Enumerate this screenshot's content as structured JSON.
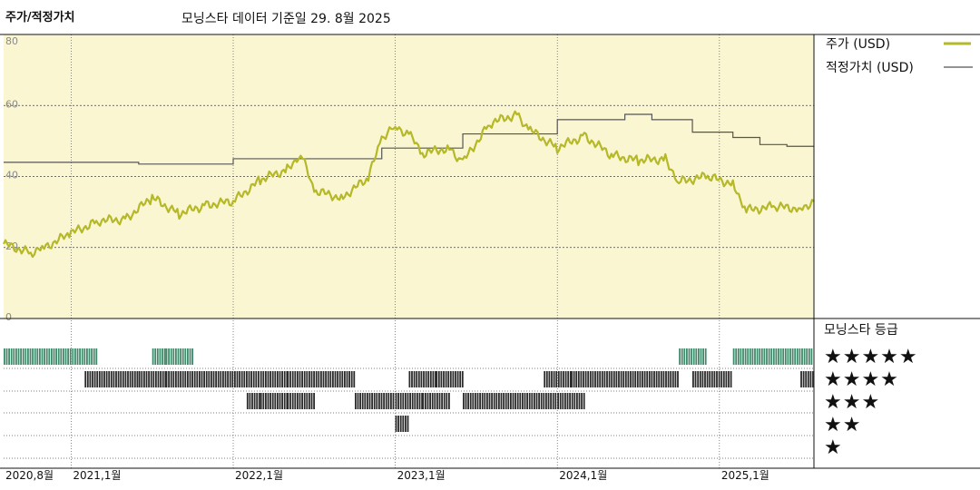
{
  "header": {
    "title": "주가/적정가치",
    "subtitle": "모닝스타 데이터 기준일 29. 8월 2025"
  },
  "legend": {
    "price_label": "주가 (USD)",
    "fair_value_label": "적정가치 (USD)"
  },
  "rating_panel": {
    "title": "모닝스타 등급",
    "levels": [
      "★★★★★",
      "★★★★",
      "★★★",
      "★★",
      "★"
    ]
  },
  "colors": {
    "price_line": "#b5b828",
    "fair_value_line": "#555555",
    "plot_bg": "#faf6d2",
    "five_star_bars": "#3f8a6a",
    "other_bars": "#2b2b2b"
  },
  "chart_data": {
    "type": "line",
    "x_axis": {
      "start": "2020-08",
      "end": "2025-08",
      "tick_labels": [
        "2020,8월",
        "2021,1월",
        "2022,1월",
        "2023,1월",
        "2024,1월",
        "2025,1월"
      ],
      "tick_dates": [
        "2020-08",
        "2021-01",
        "2022-01",
        "2023-01",
        "2024-01",
        "2025-01"
      ]
    },
    "y_axis": {
      "ticks": [
        0,
        20,
        40,
        60,
        80
      ],
      "ylim": [
        0,
        80
      ],
      "grid": true
    },
    "series": [
      {
        "name": "주가 (USD)",
        "points": [
          [
            "2020-08",
            21.0
          ],
          [
            "2020-10",
            18.5
          ],
          [
            "2020-11",
            20.0
          ],
          [
            "2021-01",
            24.0
          ],
          [
            "2021-03",
            27.5
          ],
          [
            "2021-05",
            28.0
          ],
          [
            "2021-07",
            34.0
          ],
          [
            "2021-09",
            29.5
          ],
          [
            "2021-11",
            32.0
          ],
          [
            "2022-01",
            33.0
          ],
          [
            "2022-03",
            39.0
          ],
          [
            "2022-05",
            42.0
          ],
          [
            "2022-06",
            46.5
          ],
          [
            "2022-07",
            36.0
          ],
          [
            "2022-09",
            34.0
          ],
          [
            "2022-11",
            39.5
          ],
          [
            "2022-12",
            51.0
          ],
          [
            "2023-01",
            54.0
          ],
          [
            "2023-02",
            52.0
          ],
          [
            "2023-03",
            46.5
          ],
          [
            "2023-05",
            48.0
          ],
          [
            "2023-06",
            44.0
          ],
          [
            "2023-08",
            55.0
          ],
          [
            "2023-10",
            57.5
          ],
          [
            "2023-11",
            53.0
          ],
          [
            "2024-01",
            48.0
          ],
          [
            "2024-03",
            51.5
          ],
          [
            "2024-05",
            46.0
          ],
          [
            "2024-07",
            44.5
          ],
          [
            "2024-09",
            45.0
          ],
          [
            "2024-10",
            38.5
          ],
          [
            "2024-12",
            40.0
          ],
          [
            "2025-02",
            38.0
          ],
          [
            "2025-03",
            30.5
          ],
          [
            "2025-05",
            31.5
          ],
          [
            "2025-07",
            31.0
          ],
          [
            "2025-08",
            33.0
          ]
        ]
      },
      {
        "name": "적정가치 (USD)",
        "points": [
          [
            "2020-08",
            44.0
          ],
          [
            "2021-01",
            44.0
          ],
          [
            "2021-05",
            44.0
          ],
          [
            "2021-06",
            43.5
          ],
          [
            "2021-12",
            43.5
          ],
          [
            "2022-01",
            45.0
          ],
          [
            "2022-11",
            45.0
          ],
          [
            "2022-12",
            48.0
          ],
          [
            "2023-05",
            48.0
          ],
          [
            "2023-06",
            52.0
          ],
          [
            "2023-12",
            52.0
          ],
          [
            "2024-01",
            56.0
          ],
          [
            "2024-05",
            56.0
          ],
          [
            "2024-06",
            57.5
          ],
          [
            "2024-08",
            56.0
          ],
          [
            "2024-10",
            56.0
          ],
          [
            "2024-11",
            52.5
          ],
          [
            "2025-01",
            52.5
          ],
          [
            "2025-02",
            51.0
          ],
          [
            "2025-04",
            49.0
          ],
          [
            "2025-06",
            48.5
          ],
          [
            "2025-08",
            48.5
          ]
        ]
      }
    ],
    "rating_history": [
      {
        "stars": 5,
        "periods": [
          [
            "2020-08",
            "2021-02"
          ],
          [
            "2021-07",
            "2021-07"
          ],
          [
            "2021-08",
            "2021-09"
          ],
          [
            "2024-10",
            "2024-11"
          ],
          [
            "2025-02",
            "2025-08"
          ]
        ]
      },
      {
        "stars": 4,
        "periods": [
          [
            "2021-02",
            "2021-05"
          ],
          [
            "2021-06",
            "2021-07"
          ],
          [
            "2021-08",
            "2022-02"
          ],
          [
            "2022-03",
            "2022-04"
          ],
          [
            "2022-05",
            "2022-09"
          ],
          [
            "2023-02",
            "2023-03"
          ],
          [
            "2023-04",
            "2023-05"
          ],
          [
            "2023-12",
            "2024-01"
          ],
          [
            "2024-02",
            "2024-09"
          ],
          [
            "2024-11",
            "2025-01"
          ],
          [
            "2025-07",
            "2025-07"
          ]
        ]
      },
      {
        "stars": 3,
        "periods": [
          [
            "2022-02",
            "2022-02"
          ],
          [
            "2022-03",
            "2022-04"
          ],
          [
            "2022-05",
            "2022-06"
          ],
          [
            "2022-10",
            "2022-12"
          ],
          [
            "2023-01",
            "2023-02"
          ],
          [
            "2023-03",
            "2023-04"
          ],
          [
            "2023-06",
            "2023-12"
          ],
          [
            "2024-01",
            "2024-02"
          ]
        ]
      },
      {
        "stars": 2,
        "periods": [
          [
            "2023-01",
            "2023-01"
          ]
        ]
      },
      {
        "stars": 1,
        "periods": []
      }
    ]
  }
}
